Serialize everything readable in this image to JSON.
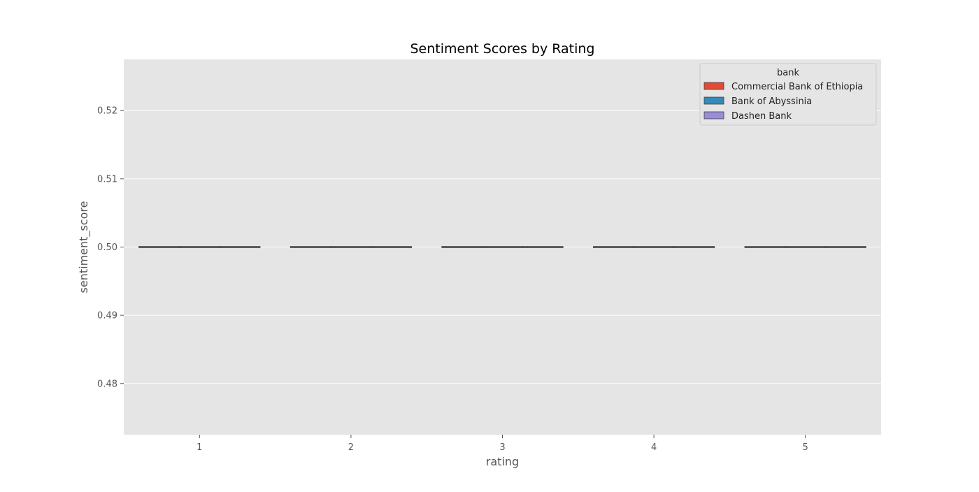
{
  "chart_data": {
    "type": "box",
    "title": "Sentiment Scores by Rating",
    "xlabel": "rating",
    "ylabel": "sentiment_score",
    "categories": [
      "1",
      "2",
      "3",
      "4",
      "5"
    ],
    "ylim": [
      0.4725,
      0.5275
    ],
    "yticks": [
      0.48,
      0.49,
      0.5,
      0.51,
      0.52
    ],
    "ytick_labels": [
      "0.48",
      "0.49",
      "0.50",
      "0.51",
      "0.52"
    ],
    "grid": true,
    "legend": {
      "title": "bank",
      "position": "top-right"
    },
    "series": [
      {
        "name": "Commercial Bank of Ethiopia",
        "color": "#E24A33",
        "values": [
          0.5,
          0.5,
          0.5,
          0.5,
          0.5
        ]
      },
      {
        "name": "Bank of Abyssinia",
        "color": "#348ABD",
        "values": [
          0.5,
          0.5,
          0.5,
          0.5,
          0.5
        ]
      },
      {
        "name": "Dashen Bank",
        "color": "#988ED5",
        "values": [
          0.5,
          0.5,
          0.5,
          0.5,
          0.5
        ]
      }
    ],
    "colors": {
      "axes_bg": "#E5E5E5",
      "grid": "#FFFFFF",
      "median": "#3F3F3F",
      "text": "#555555"
    }
  }
}
